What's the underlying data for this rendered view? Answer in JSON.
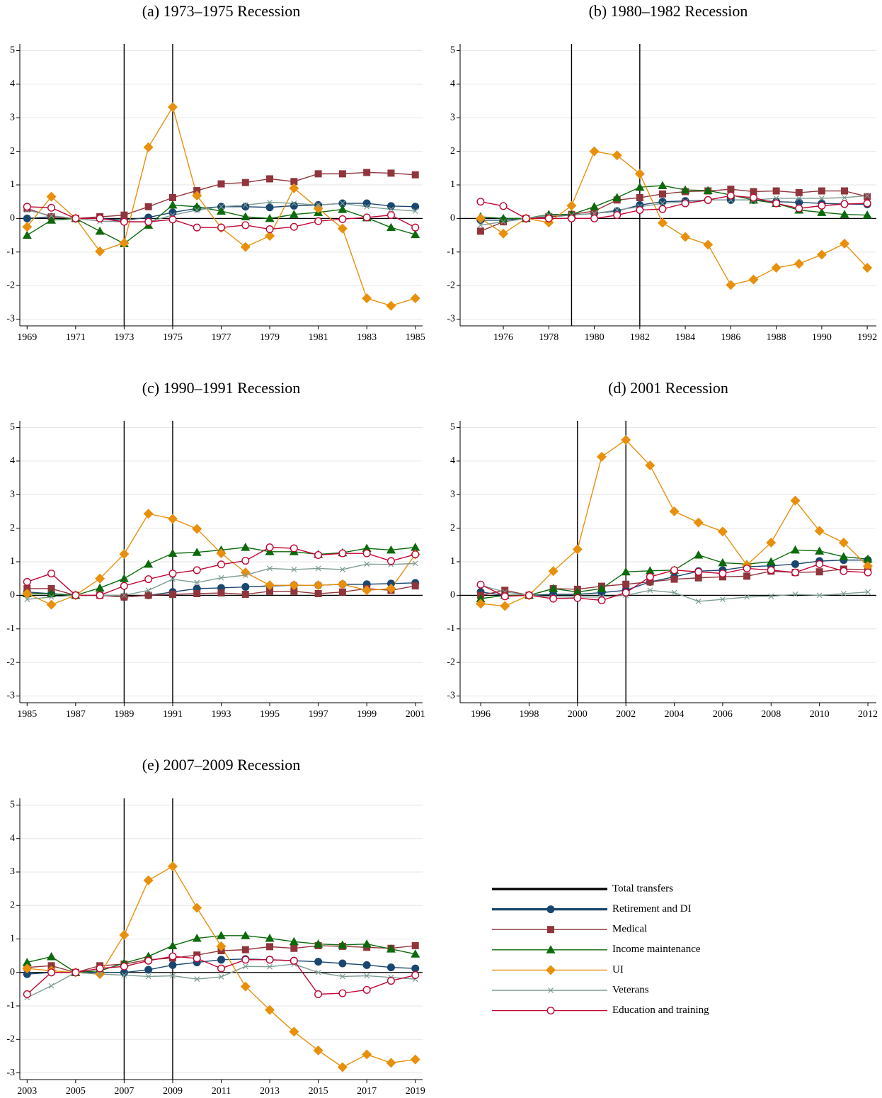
{
  "chart_data": [
    {
      "type": "line",
      "title": "(a) 1973–1975 Recession",
      "x": [
        1969,
        1970,
        1971,
        1972,
        1973,
        1974,
        1975,
        1976,
        1977,
        1978,
        1979,
        1980,
        1981,
        1982,
        1983,
        1984,
        1985
      ],
      "xlim": [
        1968.7,
        1985.3
      ],
      "xticks": [
        1969,
        1971,
        1973,
        1975,
        1977,
        1979,
        1981,
        1983,
        1985
      ],
      "ylim": [
        -3.2,
        5.2
      ],
      "yticks": [
        -3,
        -2,
        -1,
        0,
        1,
        2,
        3,
        4,
        5
      ],
      "grid": true,
      "recession_years": [
        1973,
        1975
      ],
      "series": [
        {
          "name": "Retirement and DI",
          "color": "#1a476f",
          "marker": "circle",
          "values": [
            0,
            0.05,
            0,
            0,
            -0.05,
            0.03,
            0.18,
            0.3,
            0.35,
            0.35,
            0.33,
            0.38,
            0.4,
            0.45,
            0.45,
            0.37,
            0.35
          ]
        },
        {
          "name": "Medical",
          "color": "#90353b",
          "marker": "square",
          "values": [
            0.3,
            0.05,
            0,
            0.05,
            0.1,
            0.35,
            0.62,
            0.83,
            1.03,
            1.07,
            1.18,
            1.1,
            1.33,
            1.33,
            1.37,
            1.35,
            1.3
          ]
        },
        {
          "name": "Income maintenance",
          "color": "#0b6a0b",
          "marker": "triangle",
          "values": [
            -0.5,
            -0.05,
            0,
            -0.38,
            -0.75,
            -0.2,
            0.4,
            0.35,
            0.22,
            0.05,
            0,
            0.12,
            0.18,
            0.27,
            0.02,
            -0.27,
            -0.48
          ]
        },
        {
          "name": "UI",
          "color": "#e8900c",
          "marker": "diamond",
          "values": [
            -0.25,
            0.65,
            0,
            -0.98,
            -0.73,
            2.12,
            3.32,
            0.68,
            -0.28,
            -0.85,
            -0.52,
            0.9,
            0.3,
            -0.3,
            -2.38,
            -2.6,
            -2.38
          ]
        },
        {
          "name": "Veterans",
          "color": "#7d9c92",
          "marker": "x",
          "values": [
            0.25,
            0.08,
            0,
            -0.08,
            -0.1,
            -0.1,
            0.1,
            0.25,
            0.35,
            0.4,
            0.48,
            0.45,
            0.4,
            0.45,
            0.35,
            0.27,
            0.22
          ]
        },
        {
          "name": "Education and training",
          "color": "#c10534",
          "marker": "hollow-circle",
          "values": [
            0.35,
            0.32,
            0,
            0,
            -0.1,
            -0.1,
            -0.03,
            -0.27,
            -0.27,
            -0.2,
            -0.32,
            -0.25,
            -0.08,
            -0.02,
            0.03,
            0.1,
            -0.27
          ]
        }
      ]
    },
    {
      "type": "line",
      "title": "(b) 1980–1982 Recession",
      "x": [
        1975,
        1976,
        1977,
        1978,
        1979,
        1980,
        1981,
        1982,
        1983,
        1984,
        1985,
        1986,
        1987,
        1988,
        1989,
        1990,
        1991,
        1992
      ],
      "xlim": [
        1974.1,
        1992.4
      ],
      "xticks": [
        1976,
        1978,
        1980,
        1982,
        1984,
        1986,
        1988,
        1990,
        1992
      ],
      "ylim": [
        -3.2,
        5.2
      ],
      "yticks": [
        -3,
        -2,
        -1,
        0,
        1,
        2,
        3,
        4,
        5
      ],
      "grid": true,
      "recession_years": [
        1979,
        1982
      ],
      "series": [
        {
          "name": "Retirement and DI",
          "color": "#1a476f",
          "marker": "circle",
          "values": [
            -0.05,
            -0.05,
            0,
            0.05,
            0.1,
            0.15,
            0.22,
            0.4,
            0.5,
            0.52,
            0.55,
            0.55,
            0.55,
            0.5,
            0.48,
            0.45,
            0.43,
            0.42
          ]
        },
        {
          "name": "Medical",
          "color": "#90353b",
          "marker": "square",
          "values": [
            -0.38,
            -0.1,
            0,
            0.05,
            0.12,
            0.22,
            0.55,
            0.62,
            0.73,
            0.8,
            0.82,
            0.87,
            0.8,
            0.82,
            0.77,
            0.82,
            0.82,
            0.65
          ]
        },
        {
          "name": "Income maintenance",
          "color": "#0b6a0b",
          "marker": "triangle",
          "values": [
            0.05,
            0,
            0,
            0.12,
            0.12,
            0.35,
            0.62,
            0.93,
            0.98,
            0.85,
            0.83,
            0.7,
            0.55,
            0.45,
            0.25,
            0.18,
            0.12,
            0.1
          ]
        },
        {
          "name": "UI",
          "color": "#e8900c",
          "marker": "diamond",
          "values": [
            0,
            -0.45,
            0,
            -0.12,
            0.38,
            2.0,
            1.88,
            1.33,
            -0.13,
            -0.55,
            -0.78,
            -1.98,
            -1.82,
            -1.47,
            -1.35,
            -1.08,
            -0.75,
            -1.47
          ]
        },
        {
          "name": "Veterans",
          "color": "#7d9c92",
          "marker": "x",
          "values": [
            -0.2,
            -0.1,
            0,
            0.1,
            0.1,
            0.15,
            0.25,
            0.35,
            0.45,
            0.5,
            0.55,
            0.55,
            0.55,
            0.6,
            0.6,
            0.6,
            0.62,
            0.68
          ]
        },
        {
          "name": "Education and training",
          "color": "#c10534",
          "marker": "hollow-circle",
          "values": [
            0.5,
            0.37,
            0,
            0,
            0,
            0,
            0.1,
            0.25,
            0.28,
            0.45,
            0.55,
            0.68,
            0.62,
            0.45,
            0.3,
            0.38,
            0.43,
            0.45
          ]
        }
      ]
    },
    {
      "type": "line",
      "title": "(c) 1990–1991 Recession",
      "x": [
        1985,
        1986,
        1987,
        1988,
        1989,
        1990,
        1991,
        1992,
        1993,
        1994,
        1995,
        1996,
        1997,
        1998,
        1999,
        2000,
        2001
      ],
      "xlim": [
        1984.7,
        2001.3
      ],
      "xticks": [
        1985,
        1987,
        1989,
        1991,
        1993,
        1995,
        1997,
        1999,
        2001
      ],
      "ylim": [
        -3.2,
        5.2
      ],
      "yticks": [
        -3,
        -2,
        -1,
        0,
        1,
        2,
        3,
        4,
        5
      ],
      "grid": true,
      "recession_years": [
        1989,
        1991
      ],
      "series": [
        {
          "name": "Retirement and DI",
          "color": "#1a476f",
          "marker": "circle",
          "values": [
            0.1,
            0.05,
            0,
            0,
            -0.05,
            0,
            0.1,
            0.2,
            0.22,
            0.25,
            0.28,
            0.3,
            0.3,
            0.33,
            0.33,
            0.35,
            0.37
          ]
        },
        {
          "name": "Medical",
          "color": "#90353b",
          "marker": "square",
          "values": [
            0.2,
            0.2,
            0,
            0,
            -0.05,
            0,
            0.03,
            0.05,
            0.07,
            0.03,
            0.12,
            0.12,
            0.05,
            0.1,
            0.2,
            0.15,
            0.28
          ]
        },
        {
          "name": "Income maintenance",
          "color": "#0b6a0b",
          "marker": "triangle",
          "values": [
            0.05,
            0.05,
            0,
            0.22,
            0.5,
            0.93,
            1.25,
            1.28,
            1.35,
            1.43,
            1.3,
            1.3,
            1.22,
            1.27,
            1.4,
            1.35,
            1.43
          ]
        },
        {
          "name": "UI",
          "color": "#e8900c",
          "marker": "diamond",
          "values": [
            0.05,
            -0.28,
            0,
            0.5,
            1.23,
            2.43,
            2.28,
            1.98,
            1.25,
            0.68,
            0.3,
            0.3,
            0.3,
            0.33,
            0.15,
            0.2,
            1.22
          ]
        },
        {
          "name": "Veterans",
          "color": "#7d9c92",
          "marker": "x",
          "values": [
            -0.12,
            -0.05,
            0,
            0,
            0,
            0.15,
            0.48,
            0.38,
            0.52,
            0.6,
            0.8,
            0.77,
            0.8,
            0.77,
            0.93,
            0.92,
            0.95
          ]
        },
        {
          "name": "Education and training",
          "color": "#c10534",
          "marker": "hollow-circle",
          "values": [
            0.4,
            0.65,
            0,
            0,
            0.28,
            0.48,
            0.65,
            0.75,
            0.92,
            1.03,
            1.43,
            1.4,
            1.2,
            1.25,
            1.25,
            1.02,
            1.22
          ]
        }
      ]
    },
    {
      "type": "line",
      "title": "(d) 2001 Recession",
      "x": [
        1996,
        1997,
        1998,
        1999,
        2000,
        2001,
        2002,
        2003,
        2004,
        2005,
        2006,
        2007,
        2008,
        2009,
        2010,
        2011,
        2012
      ],
      "xlim": [
        1995.15,
        2012.35
      ],
      "xticks": [
        1996,
        1998,
        2000,
        2002,
        2004,
        2006,
        2008,
        2010,
        2012
      ],
      "ylim": [
        -3.2,
        5.2
      ],
      "yticks": [
        -3,
        -2,
        -1,
        0,
        1,
        2,
        3,
        4,
        5
      ],
      "grid": true,
      "recession_years": [
        2000,
        2002
      ],
      "series": [
        {
          "name": "Retirement and DI",
          "color": "#1a476f",
          "marker": "circle",
          "values": [
            0.1,
            0,
            0,
            0.03,
            0.03,
            0.08,
            0.15,
            0.4,
            0.55,
            0.72,
            0.75,
            0.85,
            0.88,
            0.93,
            1.02,
            1.05,
            1.05
          ]
        },
        {
          "name": "Medical",
          "color": "#90353b",
          "marker": "square",
          "values": [
            0,
            0.15,
            0,
            0.2,
            0.18,
            0.27,
            0.33,
            0.4,
            0.48,
            0.52,
            0.55,
            0.57,
            0.72,
            0.68,
            0.7,
            0.78,
            0.77
          ]
        },
        {
          "name": "Income maintenance",
          "color": "#0b6a0b",
          "marker": "triangle",
          "values": [
            -0.1,
            0,
            0,
            0.2,
            0.1,
            0.2,
            0.7,
            0.73,
            0.75,
            1.2,
            0.97,
            0.93,
            1.0,
            1.35,
            1.32,
            1.15,
            1.08
          ]
        },
        {
          "name": "UI",
          "color": "#e8900c",
          "marker": "diamond",
          "values": [
            -0.25,
            -0.32,
            0,
            0.72,
            1.37,
            4.13,
            4.63,
            3.87,
            2.5,
            2.17,
            1.9,
            0.9,
            1.57,
            2.82,
            1.92,
            1.57,
            0.87
          ]
        },
        {
          "name": "Veterans",
          "color": "#7d9c92",
          "marker": "x",
          "values": [
            0.3,
            0.1,
            0,
            -0.05,
            -0.05,
            -0.05,
            0,
            0.15,
            0.08,
            -0.18,
            -0.12,
            -0.05,
            -0.03,
            0.03,
            0,
            0.05,
            0.1
          ]
        },
        {
          "name": "Education and training",
          "color": "#c10534",
          "marker": "hollow-circle",
          "values": [
            0.32,
            -0.03,
            0,
            -0.1,
            -0.08,
            -0.15,
            0.08,
            0.55,
            0.75,
            0.7,
            0.65,
            0.8,
            0.75,
            0.68,
            0.93,
            0.72,
            0.68
          ]
        }
      ]
    },
    {
      "type": "line",
      "title": "(e) 2007–2009 Recession",
      "x": [
        2003,
        2004,
        2005,
        2006,
        2007,
        2008,
        2009,
        2010,
        2011,
        2012,
        2013,
        2014,
        2015,
        2016,
        2017,
        2018,
        2019
      ],
      "xlim": [
        2002.7,
        2019.3
      ],
      "xticks": [
        2003,
        2005,
        2007,
        2009,
        2011,
        2013,
        2015,
        2017,
        2019
      ],
      "ylim": [
        -3.2,
        5.2
      ],
      "yticks": [
        -3,
        -2,
        -1,
        0,
        1,
        2,
        3,
        4,
        5
      ],
      "grid": true,
      "recession_years": [
        2007,
        2009
      ],
      "series": [
        {
          "name": "Retirement and DI",
          "color": "#1a476f",
          "marker": "circle",
          "values": [
            -0.05,
            0,
            0,
            0,
            0,
            0.08,
            0.22,
            0.3,
            0.38,
            0.4,
            0.38,
            0.35,
            0.32,
            0.27,
            0.22,
            0.15,
            0.12
          ]
        },
        {
          "name": "Medical",
          "color": "#90353b",
          "marker": "square",
          "values": [
            0.15,
            0.2,
            0,
            0.2,
            0.25,
            0.38,
            0.43,
            0.52,
            0.65,
            0.68,
            0.77,
            0.72,
            0.8,
            0.78,
            0.75,
            0.72,
            0.8
          ]
        },
        {
          "name": "Income maintenance",
          "color": "#0b6a0b",
          "marker": "triangle",
          "values": [
            0.3,
            0.47,
            0,
            0.05,
            0.28,
            0.48,
            0.8,
            1.02,
            1.1,
            1.1,
            1.02,
            0.92,
            0.85,
            0.82,
            0.85,
            0.7,
            0.55
          ]
        },
        {
          "name": "UI",
          "color": "#e8900c",
          "marker": "diamond",
          "values": [
            0.12,
            0.05,
            0,
            -0.05,
            1.12,
            2.75,
            3.17,
            1.93,
            0.78,
            -0.42,
            -1.12,
            -1.77,
            -2.33,
            -2.83,
            -2.45,
            -2.7,
            -2.6
          ]
        },
        {
          "name": "Veterans",
          "color": "#7d9c92",
          "marker": "x",
          "values": [
            -0.75,
            -0.4,
            0,
            -0.05,
            -0.08,
            -0.12,
            -0.1,
            -0.2,
            -0.13,
            0.18,
            0.17,
            0.25,
            0,
            -0.12,
            -0.1,
            -0.15,
            -0.2
          ]
        },
        {
          "name": "Education and training",
          "color": "#c10534",
          "marker": "hollow-circle",
          "values": [
            -0.65,
            0,
            0,
            0.12,
            0.18,
            0.35,
            0.48,
            0.42,
            0.12,
            0.38,
            0.38,
            0.35,
            -0.65,
            -0.62,
            -0.52,
            -0.25,
            -0.08
          ]
        }
      ]
    }
  ],
  "legend": {
    "entries": [
      {
        "name": "Total transfers",
        "color": "#000000",
        "marker": "none"
      },
      {
        "name": "Retirement and DI",
        "color": "#1a476f",
        "marker": "circle"
      },
      {
        "name": "Medical",
        "color": "#90353b",
        "marker": "square"
      },
      {
        "name": "Income maintenance",
        "color": "#0b6a0b",
        "marker": "triangle"
      },
      {
        "name": "UI",
        "color": "#e8900c",
        "marker": "diamond"
      },
      {
        "name": "Veterans",
        "color": "#7d9c92",
        "marker": "x"
      },
      {
        "name": "Education and training",
        "color": "#c10534",
        "marker": "hollow-circle"
      }
    ]
  }
}
